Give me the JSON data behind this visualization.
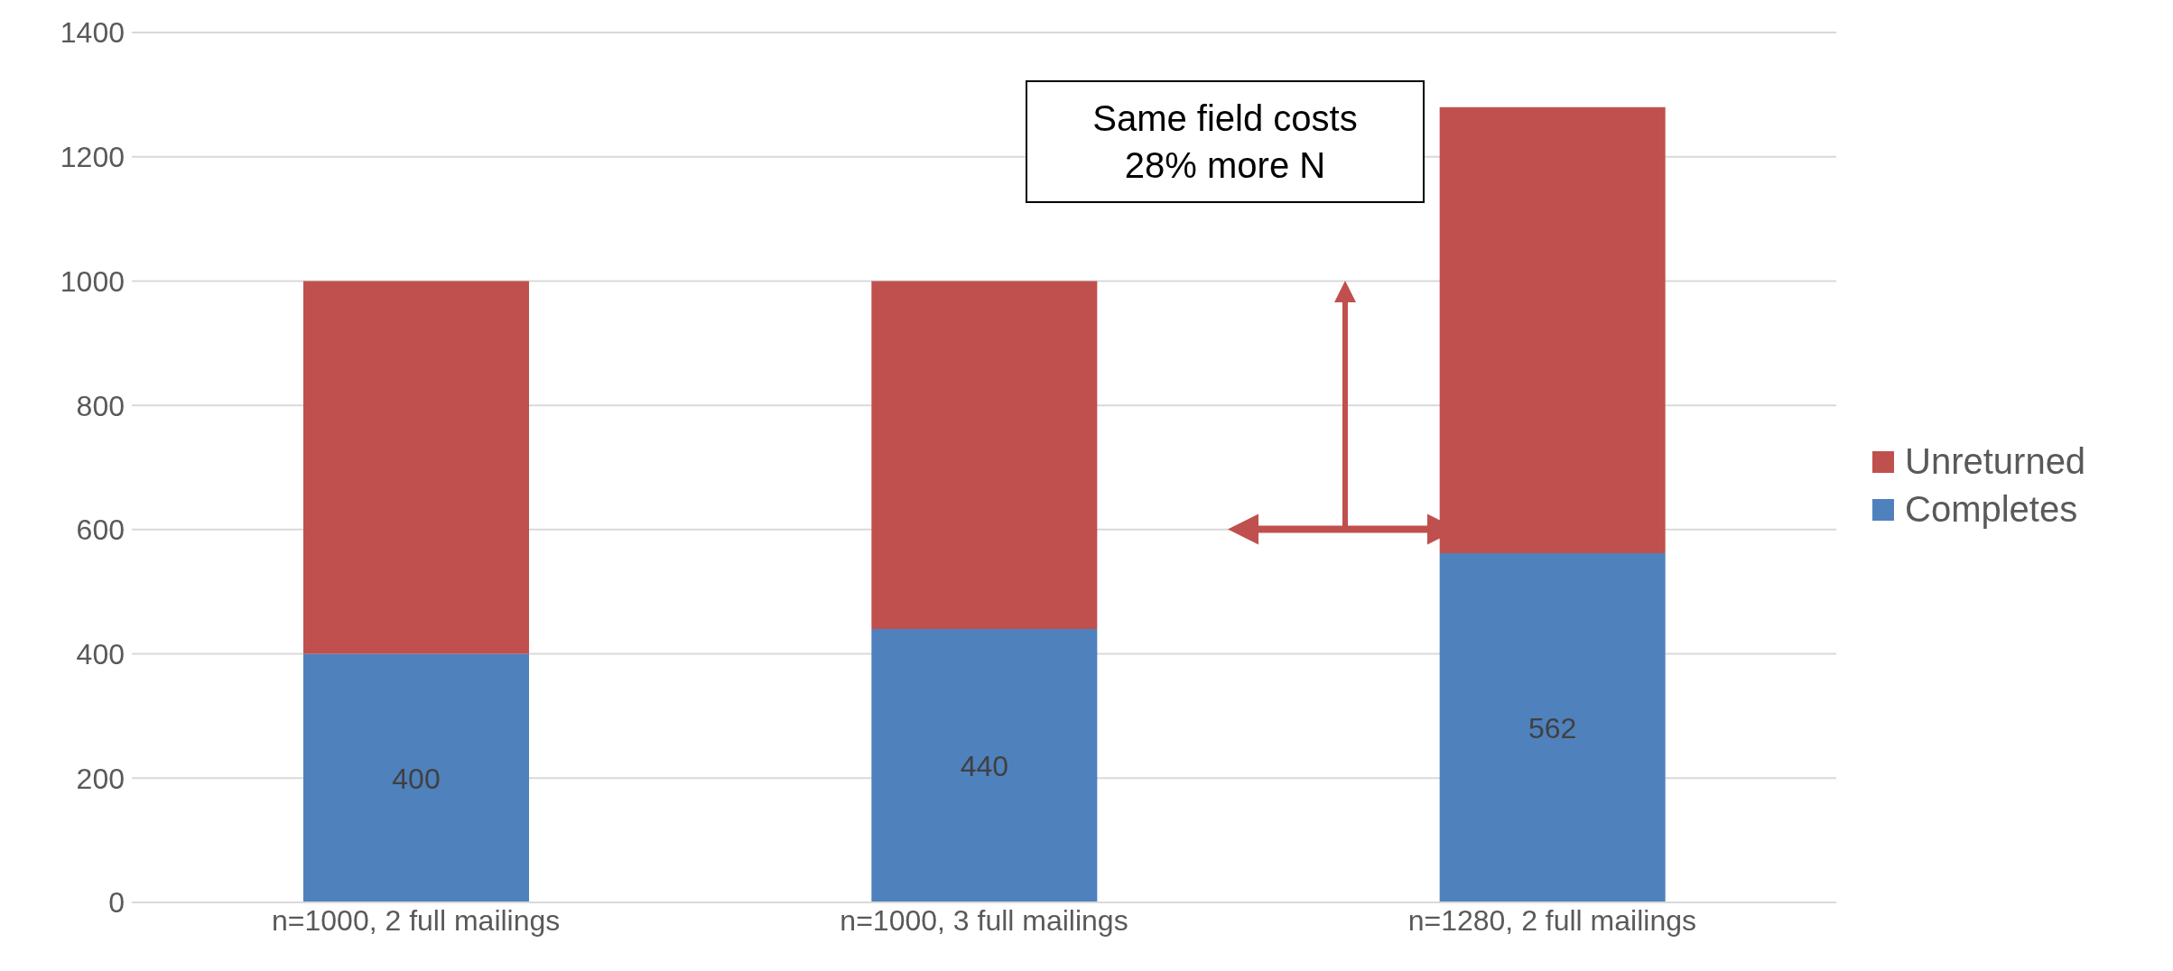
{
  "chart_data": {
    "type": "bar",
    "stacked": true,
    "categories": [
      "n=1000, 2 full mailings",
      "n=1000, 3 full mailings",
      "n=1280, 2 full mailings"
    ],
    "series": [
      {
        "name": "Completes",
        "color": "#4f81bd",
        "values": [
          400,
          440,
          562
        ],
        "value_labels": [
          "400",
          "440",
          "562"
        ]
      },
      {
        "name": "Unreturned",
        "color": "#c0504d",
        "values": [
          600,
          560,
          718
        ]
      }
    ],
    "ylim": [
      0,
      1400
    ],
    "yticks": [
      0,
      200,
      400,
      600,
      800,
      1000,
      1200,
      1400
    ],
    "grid": "y",
    "legend": "right",
    "annotations": [
      "Same field costs\n28% more N"
    ]
  }
}
